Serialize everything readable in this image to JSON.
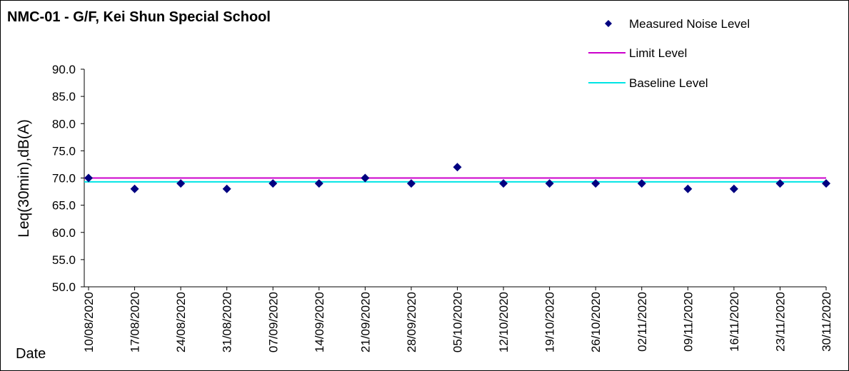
{
  "chart_data": {
    "type": "scatter",
    "title": "NMC-01 - G/F, Kei Shun Special School",
    "xlabel": "Date",
    "ylabel": "Leq(30min),dB(A)",
    "ylim": [
      50.0,
      90.0
    ],
    "yticks": [
      "50.0",
      "55.0",
      "60.0",
      "65.0",
      "70.0",
      "75.0",
      "80.0",
      "85.0",
      "90.0"
    ],
    "x_ticks": [
      "10/08/2020",
      "17/08/2020",
      "24/08/2020",
      "31/08/2020",
      "07/09/2020",
      "14/09/2020",
      "21/09/2020",
      "28/09/2020",
      "05/10/2020",
      "12/10/2020",
      "19/10/2020",
      "26/10/2020",
      "02/11/2020",
      "09/11/2020",
      "16/11/2020",
      "23/11/2020",
      "30/11/2020"
    ],
    "xlim": [
      "10/08/2020",
      "30/11/2020"
    ],
    "grid": false,
    "legend_position": "top-right",
    "series": [
      {
        "name": "Measured Noise Level",
        "kind": "scatter",
        "color": "#000080",
        "marker": "diamond",
        "points": [
          {
            "x": "10/08/2020",
            "y": 70.0
          },
          {
            "x": "17/08/2020",
            "y": 68.0
          },
          {
            "x": "24/08/2020",
            "y": 69.0
          },
          {
            "x": "31/08/2020",
            "y": 68.0
          },
          {
            "x": "07/09/2020",
            "y": 69.0
          },
          {
            "x": "14/09/2020",
            "y": 69.0
          },
          {
            "x": "21/09/2020",
            "y": 70.0
          },
          {
            "x": "28/09/2020",
            "y": 69.0
          },
          {
            "x": "05/10/2020",
            "y": 72.0
          },
          {
            "x": "12/10/2020",
            "y": 69.0
          },
          {
            "x": "19/10/2020",
            "y": 69.0
          },
          {
            "x": "26/10/2020",
            "y": 69.0
          },
          {
            "x": "02/11/2020",
            "y": 69.0
          },
          {
            "x": "09/11/2020",
            "y": 68.0
          },
          {
            "x": "16/11/2020",
            "y": 68.0
          },
          {
            "x": "23/11/2020",
            "y": 69.0
          },
          {
            "x": "30/11/2020",
            "y": 69.0
          }
        ]
      },
      {
        "name": "Limit Level",
        "kind": "line",
        "color": "#CC00CC",
        "y": 70.0
      },
      {
        "name": "Baseline Level",
        "kind": "line",
        "color": "#00E5E5",
        "y": 69.3
      }
    ]
  }
}
